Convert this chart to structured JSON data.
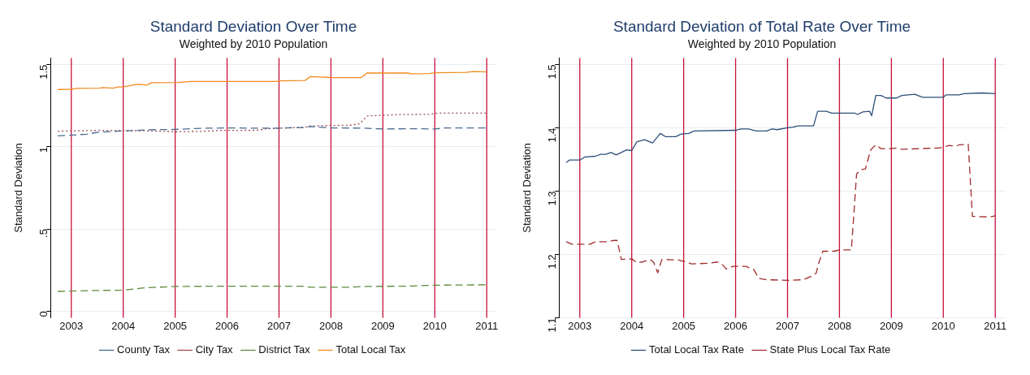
{
  "chart_data": [
    {
      "type": "line",
      "title": "Standard Deviation Over Time",
      "subtitle": "Weighted by 2010 Population",
      "ylabel": "Standard Deviation",
      "xlim": [
        2002.6,
        2011.2
      ],
      "xticks": [
        2003,
        2004,
        2005,
        2006,
        2007,
        2008,
        2009,
        2010,
        2011
      ],
      "ylim": [
        -0.04,
        1.54
      ],
      "yticks": [
        0,
        {
          "value": 0.5,
          "label": ".5"
        },
        1,
        1.5
      ],
      "grid": "y",
      "legend": "bottom",
      "ref_lines": [
        {
          "axis": "x",
          "value": 2003,
          "color": "#c8103c"
        },
        {
          "axis": "x",
          "value": 2004,
          "color": "#c8103c"
        },
        {
          "axis": "x",
          "value": 2005,
          "color": "#c8103c"
        },
        {
          "axis": "x",
          "value": 2006,
          "color": "#c8103c"
        },
        {
          "axis": "x",
          "value": 2007,
          "color": "#c8103c"
        },
        {
          "axis": "x",
          "value": 2008,
          "color": "#c8103c"
        },
        {
          "axis": "x",
          "value": 2009,
          "color": "#c8103c"
        },
        {
          "axis": "x",
          "value": 2010,
          "color": "#c8103c"
        },
        {
          "axis": "x",
          "value": 2011,
          "color": "#c8103c"
        }
      ],
      "series": [
        {
          "name": "County Tax",
          "color": "#4a6a8f",
          "line_style": "dashed",
          "x": [
            2002.74,
            2003.3,
            2003.5,
            2004,
            2004.3,
            2004.5,
            2005,
            2005.5,
            2006,
            2006.5,
            2007,
            2007.5,
            2007.6,
            2008,
            2008.6,
            2009,
            2009.6,
            2010,
            2010.2,
            2011
          ],
          "values": [
            1.067,
            1.077,
            1.088,
            1.097,
            1.1,
            1.104,
            1.106,
            1.113,
            1.115,
            1.114,
            1.114,
            1.118,
            1.124,
            1.115,
            1.114,
            1.109,
            1.11,
            1.109,
            1.115,
            1.115
          ]
        },
        {
          "name": "City Tax",
          "color": "#9c4c54",
          "line_style": "dotted",
          "x": [
            2002.74,
            2003.5,
            2004.4,
            2005,
            2005.5,
            2005.9,
            2006.6,
            2006.75,
            2007,
            2007.5,
            2007.6,
            2008,
            2008.35,
            2008.55,
            2008.7,
            2009.3,
            2009.9,
            2010.05,
            2011
          ],
          "values": [
            1.095,
            1.1,
            1.098,
            1.092,
            1.094,
            1.1,
            1.101,
            1.11,
            1.113,
            1.12,
            1.127,
            1.13,
            1.131,
            1.14,
            1.188,
            1.196,
            1.198,
            1.205,
            1.205
          ]
        },
        {
          "name": "District Tax",
          "color": "#5c8a3a",
          "line_style": "dashed",
          "x": [
            2002.74,
            2003.5,
            2004,
            2004.4,
            2005,
            2006,
            2007.5,
            2007.6,
            2008.3,
            2008.6,
            2009.5,
            2010,
            2011
          ],
          "values": [
            0.12,
            0.126,
            0.127,
            0.142,
            0.15,
            0.152,
            0.152,
            0.145,
            0.145,
            0.15,
            0.152,
            0.158,
            0.16
          ]
        },
        {
          "name": "Total Local Tax",
          "color": "#f28a1e",
          "line_style": "solid",
          "x": [
            2002.74,
            2003,
            2003.1,
            2003.55,
            2003.6,
            2003.8,
            2003.9,
            2004,
            2004.2,
            2004.3,
            2004.45,
            2004.55,
            2005.05,
            2005.3,
            2006.95,
            2007,
            2007.5,
            2007.6,
            2007.8,
            2008,
            2008.58,
            2008.7,
            2009,
            2009.5,
            2009.55,
            2009.9,
            2010,
            2010.6,
            2010.75,
            2011
          ],
          "values": [
            1.349,
            1.35,
            1.356,
            1.357,
            1.361,
            1.357,
            1.364,
            1.364,
            1.377,
            1.381,
            1.376,
            1.39,
            1.392,
            1.398,
            1.398,
            1.402,
            1.404,
            1.427,
            1.425,
            1.422,
            1.421,
            1.45,
            1.449,
            1.449,
            1.445,
            1.446,
            1.451,
            1.453,
            1.458,
            1.456
          ]
        }
      ]
    },
    {
      "type": "line",
      "title": "Standard Deviation of Total Rate Over Time",
      "subtitle": "Weighted by 2010 Population",
      "ylabel": "Standard Deviation",
      "xlim": [
        2002.6,
        2011.2
      ],
      "xticks": [
        2003,
        2004,
        2005,
        2006,
        2007,
        2008,
        2009,
        2010,
        2011
      ],
      "ylim": [
        1.1,
        1.51
      ],
      "yticks": [
        1.1,
        1.2,
        1.3,
        1.4,
        1.5
      ],
      "grid": "y",
      "legend": "bottom",
      "ref_lines": [
        {
          "axis": "x",
          "value": 2003,
          "color": "#c8103c"
        },
        {
          "axis": "x",
          "value": 2004,
          "color": "#c8103c"
        },
        {
          "axis": "x",
          "value": 2005,
          "color": "#c8103c"
        },
        {
          "axis": "x",
          "value": 2006,
          "color": "#c8103c"
        },
        {
          "axis": "x",
          "value": 2007,
          "color": "#c8103c"
        },
        {
          "axis": "x",
          "value": 2008,
          "color": "#c8103c"
        },
        {
          "axis": "x",
          "value": 2009,
          "color": "#c8103c"
        },
        {
          "axis": "x",
          "value": 2010,
          "color": "#c8103c"
        },
        {
          "axis": "x",
          "value": 2011,
          "color": "#c8103c"
        }
      ],
      "series": [
        {
          "name": "Total Local Tax Rate",
          "color": "#2f4f7a",
          "line_style": "solid",
          "x": [
            2002.74,
            2002.8,
            2003,
            2003.1,
            2003.3,
            2003.4,
            2003.5,
            2003.6,
            2003.7,
            2003.9,
            2004,
            2004.1,
            2004.25,
            2004.4,
            2004.55,
            2004.65,
            2004.85,
            2004.95,
            2005.1,
            2005.2,
            2006,
            2006.1,
            2006.25,
            2006.4,
            2006.6,
            2006.7,
            2006.8,
            2007,
            2007.1,
            2007.2,
            2007.5,
            2007.58,
            2007.75,
            2007.85,
            2008.3,
            2008.35,
            2008.45,
            2008.58,
            2008.62,
            2008.7,
            2008.8,
            2008.9,
            2009.1,
            2009.2,
            2009.45,
            2009.6,
            2010,
            2010.05,
            2010.3,
            2010.4,
            2010.75,
            2011
          ],
          "values": [
            1.345,
            1.349,
            1.349,
            1.354,
            1.355,
            1.358,
            1.358,
            1.361,
            1.357,
            1.365,
            1.364,
            1.378,
            1.381,
            1.376,
            1.391,
            1.386,
            1.386,
            1.39,
            1.391,
            1.395,
            1.396,
            1.398,
            1.398,
            1.395,
            1.395,
            1.398,
            1.397,
            1.4,
            1.401,
            1.403,
            1.403,
            1.426,
            1.426,
            1.423,
            1.423,
            1.421,
            1.425,
            1.426,
            1.419,
            1.451,
            1.451,
            1.447,
            1.447,
            1.451,
            1.453,
            1.448,
            1.448,
            1.452,
            1.452,
            1.454,
            1.455,
            1.454
          ]
        },
        {
          "name": "State Plus Local Tax Rate",
          "color": "#a02c2c",
          "line_style": "dashed",
          "x": [
            2002.74,
            2002.85,
            2003.2,
            2003.3,
            2003.55,
            2003.65,
            2003.72,
            2003.8,
            2004,
            2004.1,
            2004.2,
            2004.35,
            2004.42,
            2004.5,
            2004.58,
            2004.9,
            2005.05,
            2005.15,
            2005.5,
            2005.65,
            2005.72,
            2005.82,
            2005.95,
            2006.2,
            2006.35,
            2006.45,
            2006.6,
            2007,
            2007.3,
            2007.45,
            2007.55,
            2007.6,
            2007.68,
            2007.9,
            2008,
            2008.23,
            2008.33,
            2008.42,
            2008.5,
            2008.6,
            2008.7,
            2008.8,
            2009,
            2009.1,
            2009.2,
            2009.9,
            2010,
            2010.1,
            2010.25,
            2010.3,
            2010.48,
            2010.56,
            2010.9,
            2011
          ],
          "values": [
            1.22,
            1.216,
            1.216,
            1.22,
            1.22,
            1.222,
            1.222,
            1.192,
            1.193,
            1.187,
            1.188,
            1.192,
            1.188,
            1.171,
            1.192,
            1.191,
            1.188,
            1.185,
            1.186,
            1.188,
            1.186,
            1.177,
            1.181,
            1.181,
            1.176,
            1.162,
            1.16,
            1.159,
            1.16,
            1.165,
            1.17,
            1.186,
            1.205,
            1.205,
            1.207,
            1.207,
            1.327,
            1.334,
            1.335,
            1.365,
            1.373,
            1.367,
            1.367,
            1.368,
            1.366,
            1.368,
            1.369,
            1.372,
            1.371,
            1.373,
            1.374,
            1.26,
            1.259,
            1.261
          ]
        }
      ]
    }
  ]
}
